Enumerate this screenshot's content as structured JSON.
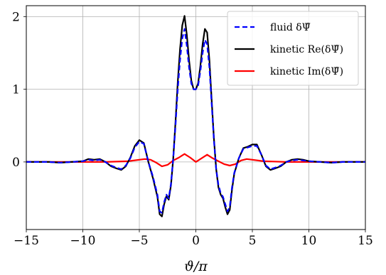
{
  "chart_data": {
    "type": "line",
    "xlabel": "ϑ/π",
    "ylabel": "",
    "xlim": [
      -15,
      15
    ],
    "ylim": [
      -0.93,
      2.15
    ],
    "xticks": [
      -15,
      -10,
      -5,
      0,
      5,
      10,
      15
    ],
    "xtick_labels": [
      "−15",
      "−10",
      "−5",
      "0",
      "5",
      "10",
      "15"
    ],
    "yticks": [
      0,
      1,
      2
    ],
    "ytick_labels": [
      "0",
      "1",
      "2"
    ],
    "grid": true,
    "legend_position": "top-right",
    "series": [
      {
        "name": "fluid δΨ̂",
        "color": "#0000ff",
        "style": "dashed",
        "x": [
          -15,
          -13,
          -12,
          -11,
          -10,
          -9.5,
          -9,
          -8.5,
          -8,
          -7.5,
          -7,
          -6.6,
          -6.2,
          -5.8,
          -5.4,
          -5,
          -4.6,
          -4.2,
          -3.8,
          -3.4,
          -3.2,
          -3.0,
          -2.8,
          -2.6,
          -2.4,
          -2.2,
          -2.0,
          -1.8,
          -1.6,
          -1.4,
          -1.2,
          -1.0,
          -0.8,
          -0.6,
          -0.4,
          -0.2,
          0,
          0.2,
          0.4,
          0.6,
          0.8,
          1.0,
          1.2,
          1.4,
          1.6,
          1.8,
          2.0,
          2.2,
          2.4,
          2.6,
          2.8,
          3.0,
          3.2,
          3.4,
          3.8,
          4.2,
          4.6,
          5.0,
          5.4,
          5.8,
          6.2,
          6.6,
          7.0,
          7.5,
          8,
          8.5,
          9,
          9.5,
          10,
          11,
          12,
          13,
          15
        ],
        "y": [
          0.0,
          0.0,
          -0.01,
          0.0,
          0.01,
          0.03,
          0.02,
          0.03,
          0.0,
          -0.05,
          -0.08,
          -0.1,
          -0.05,
          0.05,
          0.2,
          0.28,
          0.25,
          0.0,
          -0.2,
          -0.45,
          -0.68,
          -0.7,
          -0.55,
          -0.45,
          -0.5,
          -0.3,
          0.05,
          0.5,
          1.0,
          1.4,
          1.7,
          1.83,
          1.6,
          1.3,
          1.08,
          1.0,
          1.0,
          1.05,
          1.25,
          1.5,
          1.68,
          1.62,
          1.3,
          0.8,
          0.3,
          -0.1,
          -0.32,
          -0.43,
          -0.48,
          -0.58,
          -0.68,
          -0.62,
          -0.35,
          -0.15,
          0.05,
          0.18,
          0.2,
          0.22,
          0.22,
          0.1,
          -0.05,
          -0.1,
          -0.08,
          -0.05,
          0.0,
          0.02,
          0.03,
          0.02,
          0.01,
          0.0,
          -0.01,
          0.0,
          0.0
        ]
      },
      {
        "name": "kinetic Re(δΨ̂)",
        "color": "#000000",
        "style": "solid",
        "x": [
          -15,
          -13,
          -12,
          -11,
          -10,
          -9.5,
          -9,
          -8.5,
          -8,
          -7.5,
          -7,
          -6.6,
          -6.2,
          -5.8,
          -5.4,
          -5,
          -4.6,
          -4.2,
          -3.8,
          -3.4,
          -3.2,
          -3.0,
          -2.8,
          -2.6,
          -2.4,
          -2.2,
          -2.0,
          -1.8,
          -1.6,
          -1.4,
          -1.2,
          -1.0,
          -0.8,
          -0.6,
          -0.4,
          -0.2,
          0,
          0.2,
          0.4,
          0.6,
          0.8,
          1.0,
          1.2,
          1.4,
          1.6,
          1.8,
          2.0,
          2.2,
          2.4,
          2.6,
          2.8,
          3.0,
          3.2,
          3.4,
          3.8,
          4.2,
          4.6,
          5.0,
          5.4,
          5.8,
          6.2,
          6.6,
          7.0,
          7.5,
          8,
          8.5,
          9,
          9.5,
          10,
          11,
          12,
          13,
          15
        ],
        "y": [
          0.0,
          0.0,
          -0.01,
          0.0,
          0.01,
          0.04,
          0.03,
          0.04,
          0.0,
          -0.06,
          -0.09,
          -0.11,
          -0.06,
          0.06,
          0.22,
          0.3,
          0.26,
          0.0,
          -0.22,
          -0.48,
          -0.72,
          -0.75,
          -0.58,
          -0.47,
          -0.52,
          -0.32,
          0.05,
          0.55,
          1.1,
          1.55,
          1.88,
          2.01,
          1.75,
          1.4,
          1.12,
          1.0,
          1.0,
          1.08,
          1.32,
          1.62,
          1.83,
          1.78,
          1.4,
          0.85,
          0.32,
          -0.1,
          -0.35,
          -0.45,
          -0.5,
          -0.62,
          -0.72,
          -0.66,
          -0.38,
          -0.16,
          0.05,
          0.19,
          0.21,
          0.24,
          0.24,
          0.1,
          -0.06,
          -0.11,
          -0.09,
          -0.06,
          0.0,
          0.03,
          0.04,
          0.03,
          0.01,
          0.0,
          -0.01,
          0.0,
          0.0
        ]
      },
      {
        "name": "kinetic Im(δΨ̂)",
        "color": "#ff0000",
        "style": "solid",
        "x": [
          -15,
          -12,
          -10,
          -8,
          -6,
          -5,
          -4.5,
          -4,
          -3.5,
          -3,
          -2.5,
          -2,
          -1.5,
          -1,
          -0.5,
          0,
          0.5,
          1,
          1.5,
          2,
          2.5,
          3,
          3.5,
          4,
          4.5,
          5,
          6,
          8,
          10,
          12,
          15
        ],
        "y": [
          0.0,
          0.0,
          0.0,
          0.0,
          0.01,
          0.03,
          0.04,
          0.03,
          -0.01,
          -0.06,
          -0.04,
          0.02,
          0.06,
          0.11,
          0.06,
          0.0,
          0.05,
          0.1,
          0.05,
          0.01,
          -0.03,
          -0.05,
          -0.03,
          0.02,
          0.04,
          0.03,
          0.01,
          0.0,
          0.0,
          0.0,
          0.0
        ]
      }
    ]
  }
}
